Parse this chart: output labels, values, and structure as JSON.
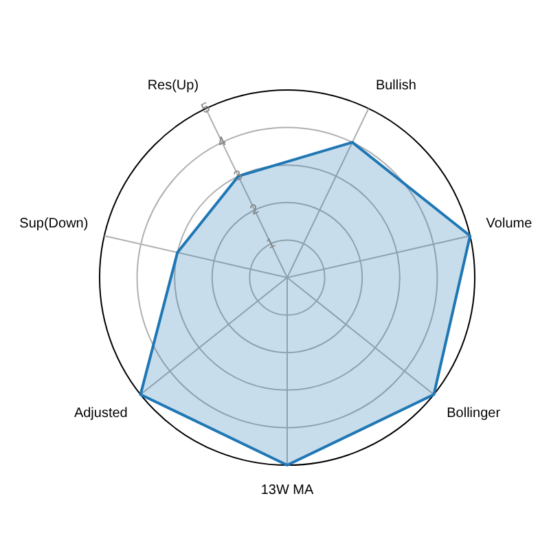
{
  "chart_data": {
    "type": "radar",
    "categories": [
      "Res(Up)",
      "Bullish",
      "Volume",
      "Bollinger",
      "13W MA",
      "Adjusted",
      "Sup(Down)"
    ],
    "series": [
      {
        "color": "#1f77b4",
        "values": [
          3,
          4,
          5,
          5,
          5,
          5,
          3
        ]
      }
    ],
    "ylim": [
      0,
      5
    ],
    "yticks": [
      1,
      2,
      3,
      4,
      5
    ],
    "grid": true,
    "legend": false
  }
}
